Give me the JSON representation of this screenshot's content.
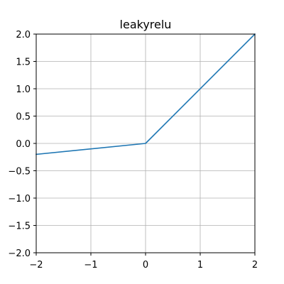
{
  "chart_data": {
    "type": "line",
    "title": "leakyrelu",
    "xlabel": "",
    "ylabel": "",
    "xlim": [
      -2,
      2
    ],
    "ylim": [
      -2,
      2
    ],
    "x_ticks": [
      -2,
      -1,
      0,
      1,
      2
    ],
    "x_tick_labels": [
      "−2",
      "−1",
      "0",
      "1",
      "2"
    ],
    "y_ticks": [
      -2,
      -1.5,
      -1,
      -0.5,
      0,
      0.5,
      1,
      1.5,
      2
    ],
    "y_tick_labels": [
      "−2.0",
      "−1.5",
      "−1.0",
      "−0.5",
      "0.0",
      "0.5",
      "1.0",
      "1.5",
      "2.0"
    ],
    "grid": true,
    "series": [
      {
        "color": "#1f77b4",
        "x": [
          -2,
          0,
          2
        ],
        "y": [
          -0.2,
          0,
          2
        ]
      }
    ]
  }
}
